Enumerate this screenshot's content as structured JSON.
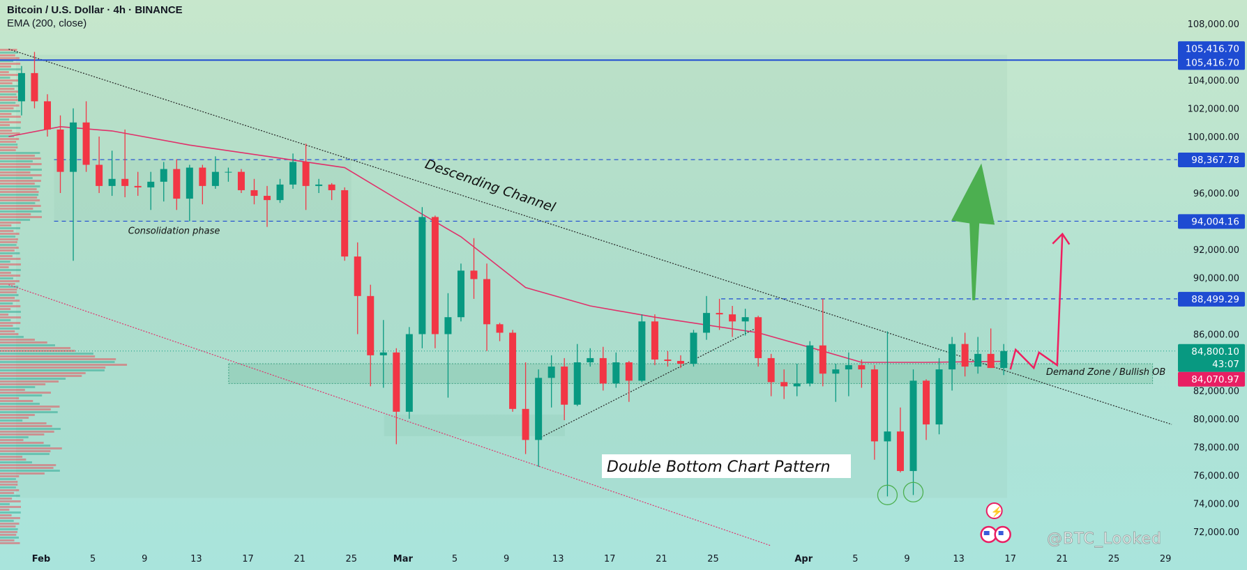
{
  "header": {
    "symbol_line": "Bitcoin / U.S. Dollar · 4h · BINANCE",
    "indicator_line": "EMA (200, close)"
  },
  "watermark": "@BTC_Looked",
  "colors": {
    "up": "#089981",
    "down": "#f23645",
    "ema": "#e0306a",
    "level": "#1e4bd2",
    "current_price_tag": "#089981",
    "ema_tag": "#e91e63",
    "target_arrow": "#4caf50",
    "projection_arrow": "#ef1f5f"
  },
  "icons": [
    "lightning-event-icon",
    "us-flag-event-icon"
  ],
  "chart_data": {
    "type": "candlestick",
    "title": "Bitcoin / U.S. Dollar · 4h · BINANCE",
    "ylim": [
      71000,
      109000
    ],
    "xlim": [
      "01-29",
      "04-30"
    ],
    "y_ticks": [
      72000,
      74000,
      76000,
      78000,
      80000,
      82000,
      84000,
      86000,
      88000,
      90000,
      92000,
      94000,
      96000,
      98000,
      100000,
      102000,
      104000,
      106000,
      108000
    ],
    "x_ticks": [
      {
        "date": "02-01",
        "label": "Feb",
        "bold": true
      },
      {
        "date": "02-05",
        "label": "5"
      },
      {
        "date": "02-09",
        "label": "9"
      },
      {
        "date": "02-13",
        "label": "13"
      },
      {
        "date": "02-17",
        "label": "17"
      },
      {
        "date": "02-21",
        "label": "21"
      },
      {
        "date": "02-25",
        "label": "25"
      },
      {
        "date": "03-01",
        "label": "Mar",
        "bold": true
      },
      {
        "date": "03-05",
        "label": "5"
      },
      {
        "date": "03-09",
        "label": "9"
      },
      {
        "date": "03-13",
        "label": "13"
      },
      {
        "date": "03-17",
        "label": "17"
      },
      {
        "date": "03-21",
        "label": "21"
      },
      {
        "date": "03-25",
        "label": "25"
      },
      {
        "date": "04-01",
        "label": "Apr",
        "bold": true
      },
      {
        "date": "04-05",
        "label": "5"
      },
      {
        "date": "04-09",
        "label": "9"
      },
      {
        "date": "04-13",
        "label": "13"
      },
      {
        "date": "04-17",
        "label": "17"
      },
      {
        "date": "04-21",
        "label": "21"
      },
      {
        "date": "04-25",
        "label": "25"
      },
      {
        "date": "04-29",
        "label": "29"
      }
    ],
    "candles_ohlc": [
      [
        "01-30",
        102500,
        105000,
        101500,
        104500
      ],
      [
        "01-31",
        104500,
        106000,
        102000,
        102500
      ],
      [
        "02-01",
        102500,
        103000,
        100000,
        100500
      ],
      [
        "02-02",
        100500,
        101500,
        96000,
        97500
      ],
      [
        "02-03",
        97500,
        102000,
        91200,
        101000
      ],
      [
        "02-04",
        101000,
        102500,
        97500,
        98000
      ],
      [
        "02-05",
        98000,
        100000,
        96000,
        96500
      ],
      [
        "02-06",
        96500,
        99000,
        95800,
        97000
      ],
      [
        "02-07",
        97000,
        100500,
        95700,
        96500
      ],
      [
        "02-08",
        96500,
        97500,
        95800,
        96400
      ],
      [
        "02-09",
        96400,
        97500,
        94800,
        96800
      ],
      [
        "02-10",
        96800,
        98200,
        95400,
        97700
      ],
      [
        "02-11",
        97700,
        98400,
        94800,
        95600
      ],
      [
        "02-12",
        95600,
        98000,
        94000,
        97800
      ],
      [
        "02-13",
        97800,
        98000,
        95200,
        96500
      ],
      [
        "02-14",
        96500,
        98600,
        96300,
        97500
      ],
      [
        "02-15",
        97500,
        97800,
        96800,
        97500
      ],
      [
        "02-16",
        97500,
        97700,
        96000,
        96200
      ],
      [
        "02-17",
        96200,
        97000,
        95200,
        95800
      ],
      [
        "02-18",
        95800,
        96500,
        93600,
        95500
      ],
      [
        "02-19",
        95500,
        97000,
        95300,
        96600
      ],
      [
        "02-20",
        96600,
        98800,
        96300,
        98200
      ],
      [
        "02-21",
        98200,
        99500,
        94800,
        96500
      ],
      [
        "02-22",
        96500,
        97000,
        96000,
        96600
      ],
      [
        "02-23",
        96600,
        96700,
        95500,
        96200
      ],
      [
        "02-24",
        96200,
        96400,
        91200,
        91500
      ],
      [
        "02-25",
        91500,
        92500,
        86000,
        88700
      ],
      [
        "02-26",
        88700,
        89500,
        82300,
        84500
      ],
      [
        "02-27",
        84500,
        87000,
        82200,
        84700
      ],
      [
        "02-28",
        84700,
        85000,
        78200,
        80500
      ],
      [
        "03-01",
        80500,
        86500,
        80000,
        86000
      ],
      [
        "03-02",
        86000,
        95000,
        85000,
        94300
      ],
      [
        "03-03",
        94300,
        94400,
        85000,
        86000
      ],
      [
        "03-04",
        86000,
        88900,
        81500,
        87200
      ],
      [
        "03-05",
        87200,
        91000,
        86900,
        90500
      ],
      [
        "03-06",
        90500,
        92800,
        88500,
        89900
      ],
      [
        "03-07",
        89900,
        91000,
        84800,
        86700
      ],
      [
        "03-08",
        86700,
        86800,
        85500,
        86100
      ],
      [
        "03-09",
        86100,
        86300,
        80500,
        80700
      ],
      [
        "03-10",
        80700,
        84000,
        77500,
        78500
      ],
      [
        "03-11",
        78500,
        83500,
        76600,
        82900
      ],
      [
        "03-12",
        82900,
        84500,
        80800,
        83700
      ],
      [
        "03-13",
        83700,
        84300,
        79900,
        81000
      ],
      [
        "03-14",
        81000,
        85300,
        80900,
        84000
      ],
      [
        "03-15",
        84000,
        85000,
        83700,
        84300
      ],
      [
        "03-16",
        84300,
        85100,
        82000,
        82500
      ],
      [
        "03-17",
        82500,
        84700,
        82200,
        84000
      ],
      [
        "03-18",
        84000,
        84100,
        81200,
        82700
      ],
      [
        "03-19",
        82700,
        87400,
        82600,
        86900
      ],
      [
        "03-20",
        86900,
        87400,
        83800,
        84200
      ],
      [
        "03-21",
        84200,
        84800,
        83700,
        84100
      ],
      [
        "03-22",
        84100,
        84500,
        83600,
        83900
      ],
      [
        "03-23",
        83900,
        86300,
        83700,
        86100
      ],
      [
        "03-24",
        86100,
        88700,
        85600,
        87500
      ],
      [
        "03-25",
        87500,
        88500,
        86300,
        87400
      ],
      [
        "03-26",
        87400,
        88000,
        85800,
        86900
      ],
      [
        "03-27",
        86900,
        87800,
        85900,
        87200
      ],
      [
        "03-28",
        87200,
        87300,
        83700,
        84300
      ],
      [
        "03-29",
        84300,
        84600,
        81600,
        82600
      ],
      [
        "03-30",
        82600,
        83500,
        81400,
        82300
      ],
      [
        "03-31",
        82300,
        83900,
        81600,
        82500
      ],
      [
        "04-01",
        82500,
        85500,
        82300,
        85200
      ],
      [
        "04-02",
        85200,
        88500,
        82300,
        83200
      ],
      [
        "04-03",
        83200,
        83900,
        81200,
        83500
      ],
      [
        "04-04",
        83500,
        84700,
        81600,
        83800
      ],
      [
        "04-05",
        83800,
        84200,
        82200,
        83500
      ],
      [
        "04-06",
        83500,
        83800,
        77100,
        78400
      ],
      [
        "04-07",
        78400,
        86200,
        74500,
        79100
      ],
      [
        "04-08",
        79100,
        80800,
        76200,
        76300
      ],
      [
        "04-09",
        76300,
        83500,
        74600,
        82700
      ],
      [
        "04-10",
        82700,
        82800,
        78500,
        79600
      ],
      [
        "04-11",
        79600,
        84300,
        78900,
        83500
      ],
      [
        "04-12",
        83500,
        85800,
        82000,
        85300
      ],
      [
        "04-13",
        85300,
        86100,
        83000,
        83700
      ],
      [
        "04-14",
        83700,
        85800,
        83200,
        84600
      ],
      [
        "04-15",
        84600,
        86400,
        83600,
        83600
      ],
      [
        "04-16",
        83600,
        85300,
        83100,
        84800
      ]
    ],
    "ema_200": [
      [
        "01-29",
        100000
      ],
      [
        "02-02",
        100700
      ],
      [
        "02-06",
        100400
      ],
      [
        "02-12",
        99400
      ],
      [
        "02-18",
        98600
      ],
      [
        "02-24",
        97800
      ],
      [
        "03-02",
        94500
      ],
      [
        "03-05",
        92900
      ],
      [
        "03-10",
        89300
      ],
      [
        "03-15",
        88000
      ],
      [
        "03-20",
        87200
      ],
      [
        "03-28",
        86100
      ],
      [
        "04-02",
        84800
      ],
      [
        "04-05",
        84000
      ],
      [
        "04-10",
        84000
      ],
      [
        "04-16",
        84070.97
      ]
    ],
    "levels": [
      {
        "price": 105416.7,
        "label": "105,416.70",
        "style": "solid",
        "from": "01-29"
      },
      {
        "price": 98367.78,
        "label": "98,367.78",
        "style": "dashed",
        "from": "02-02"
      },
      {
        "price": 94004.16,
        "label": "94,004.16",
        "style": "dashed",
        "from": "02-02"
      },
      {
        "price": 88499.29,
        "label": "88,499.29",
        "style": "dashed",
        "from": "03-24"
      }
    ],
    "duplicate_top_label": "105,416.70",
    "current_price": {
      "price": 84800.1,
      "label": "84,800.10",
      "countdown": "43:07"
    },
    "ema_last": {
      "price": 84070.97,
      "label": "84,070.97"
    },
    "annotations": {
      "descending_channel": "Descending Channel",
      "consolidation": "Consolidation phase",
      "double_bottom": "Double Bottom Chart Pattern",
      "demand_zone": "Demand Zone / Bullish OB"
    },
    "channel_upper": [
      [
        "01-29",
        106200
      ],
      [
        "04-29",
        79600
      ]
    ],
    "channel_lower": [
      [
        "01-29",
        89500
      ],
      [
        "03-29",
        71000
      ]
    ],
    "ascending_trendline": [
      [
        "03-11",
        78600
      ],
      [
        "03-28",
        86500
      ]
    ],
    "demand_zone": {
      "from": "02-14",
      "to": "04-28",
      "top": 83900,
      "bottom": 82500
    },
    "double_bottom_lows": [
      [
        "04-07",
        74700
      ],
      [
        "04-09",
        74900
      ]
    ],
    "target_arrow": {
      "date": "04-14",
      "from": 88400,
      "to": 98100
    },
    "projection_path": [
      [
        "04-17",
        83500
      ],
      [
        "04-17",
        84900
      ],
      [
        "04-18",
        83600
      ],
      [
        "04-18",
        84700
      ],
      [
        "04-19",
        83800
      ],
      [
        "04-19",
        93100
      ]
    ]
  }
}
